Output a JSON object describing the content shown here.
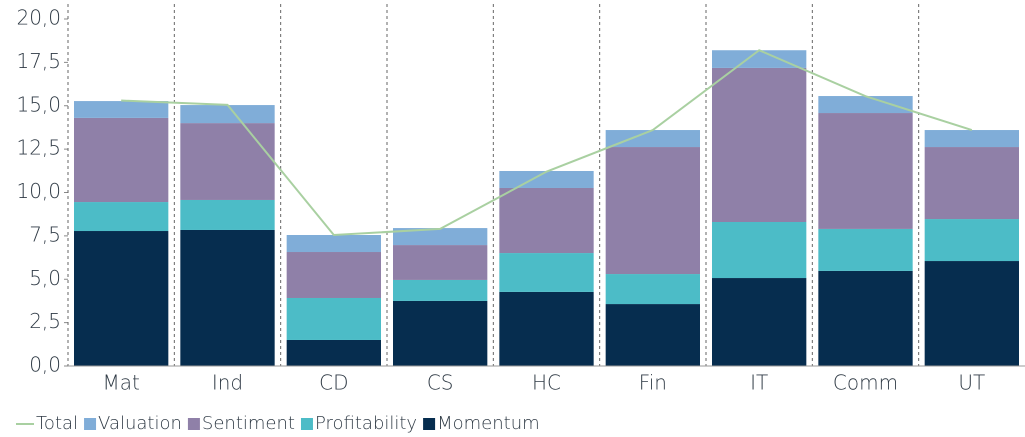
{
  "chart_data": {
    "type": "bar",
    "stacked": true,
    "categories": [
      "Mat",
      "Ind",
      "CD",
      "CS",
      "HC",
      "Fin",
      "IT",
      "Comm",
      "UT"
    ],
    "series": [
      {
        "name": "Total",
        "type": "line",
        "color": "#a9d0a1",
        "values": [
          15.3,
          15.05,
          7.55,
          7.9,
          11.2,
          13.6,
          18.2,
          15.55,
          13.6
        ]
      },
      {
        "name": "Valuation",
        "color": "#80add8",
        "values": [
          0.97,
          1.04,
          0.98,
          0.98,
          0.98,
          0.98,
          1.02,
          0.98,
          0.98
        ]
      },
      {
        "name": "Sentiment",
        "color": "#8f80a8",
        "values": [
          4.85,
          4.43,
          2.65,
          2.01,
          3.75,
          7.32,
          8.88,
          6.68,
          4.15
        ]
      },
      {
        "name": "Profitability",
        "color": "#4cbcc7",
        "values": [
          1.67,
          1.73,
          2.42,
          1.21,
          2.24,
          1.73,
          3.23,
          2.42,
          2.42
        ]
      },
      {
        "name": "Momentum",
        "color": "#062d4f",
        "values": [
          7.78,
          7.84,
          1.5,
          3.75,
          4.27,
          3.57,
          5.07,
          5.48,
          6.05
        ]
      }
    ],
    "ylim": [
      0,
      20
    ],
    "yticks": [
      {
        "value": 0,
        "label": "0,0"
      },
      {
        "value": 2.5,
        "label": "2,5"
      },
      {
        "value": 5,
        "label": "5,0"
      },
      {
        "value": 7.5,
        "label": "7,5"
      },
      {
        "value": 10,
        "label": "10,0"
      },
      {
        "value": 12.5,
        "label": "12,5"
      },
      {
        "value": 15,
        "label": "15,0"
      },
      {
        "value": 17.5,
        "label": "17,5"
      },
      {
        "value": 20,
        "label": "20,0"
      }
    ],
    "legend": "bottom-left"
  }
}
